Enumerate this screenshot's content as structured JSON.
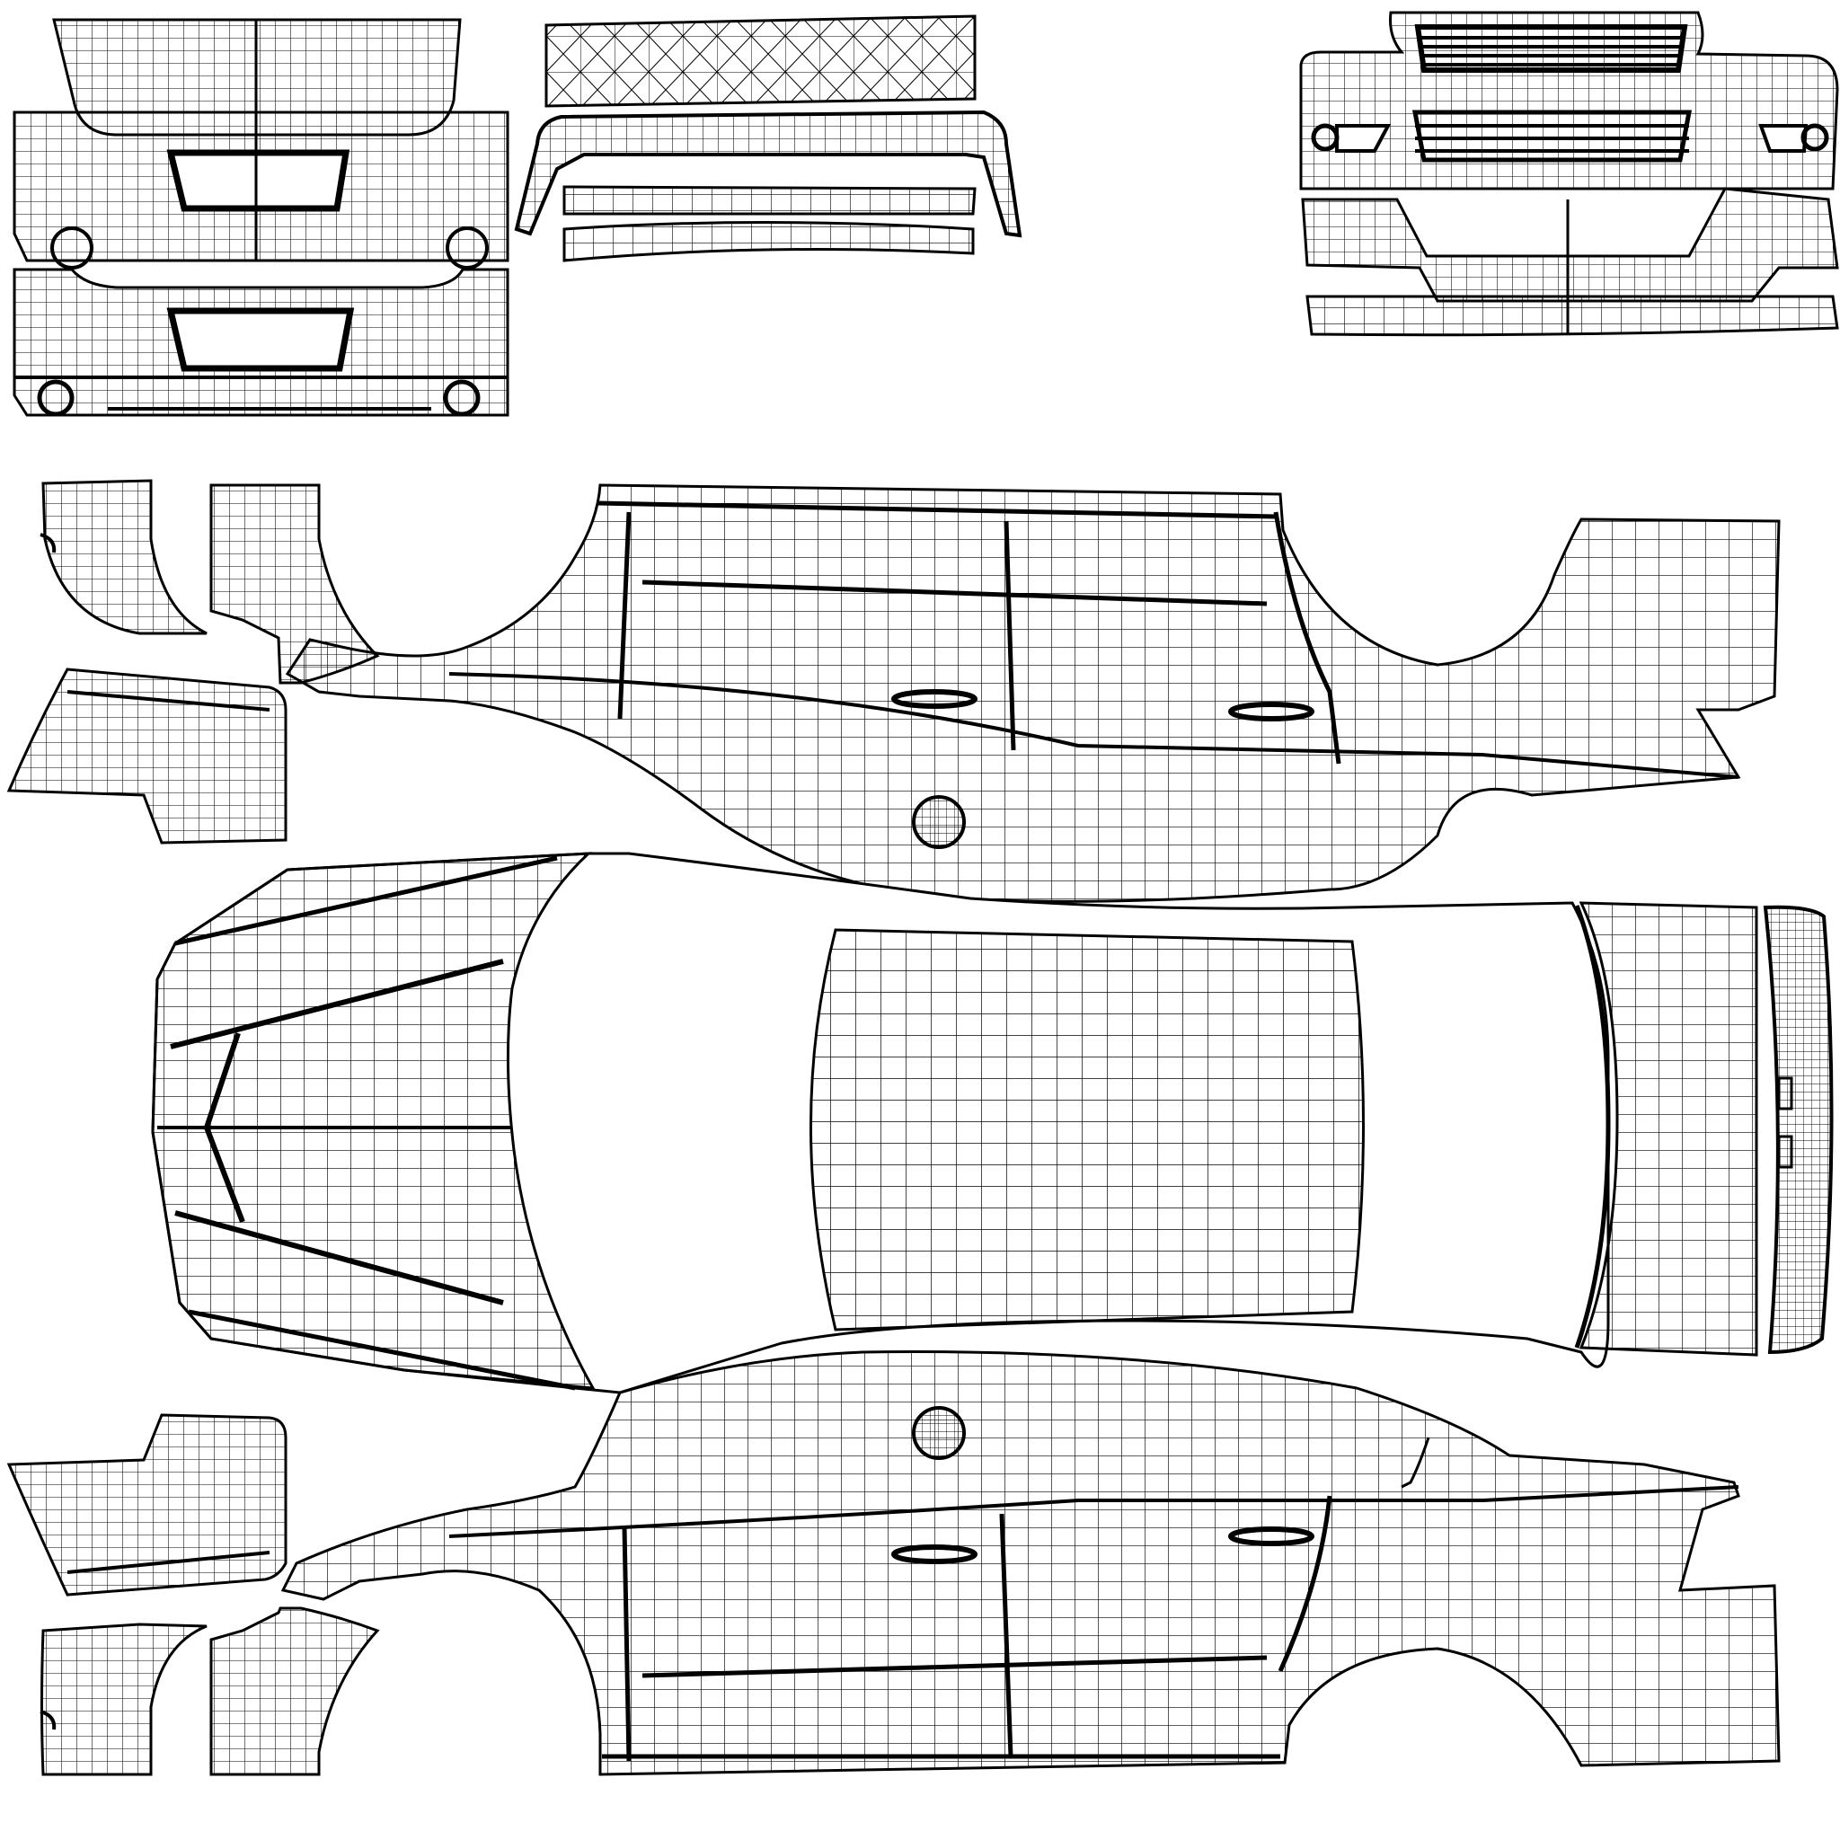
{
  "template": {
    "colors": {
      "background": "#ffffff",
      "line": "#000000"
    },
    "parts": [
      {
        "id": "rear-bumper-upper",
        "kind": "bumper"
      },
      {
        "id": "rear-bumper-lower",
        "kind": "bumper"
      },
      {
        "id": "rear-spoiler",
        "kind": "spoiler"
      },
      {
        "id": "front-bumper",
        "kind": "bumper"
      },
      {
        "id": "front-bumper-lower",
        "kind": "bumper"
      },
      {
        "id": "fender-top-left-a",
        "kind": "fender"
      },
      {
        "id": "fender-top-left-b",
        "kind": "fender"
      },
      {
        "id": "fender-top-left-c",
        "kind": "fender"
      },
      {
        "id": "side-body-top",
        "kind": "side-panel"
      },
      {
        "id": "hood-and-roof",
        "kind": "top-panel"
      },
      {
        "id": "roof-panel",
        "kind": "roof"
      },
      {
        "id": "trunk-strip",
        "kind": "trunk"
      },
      {
        "id": "side-body-bottom",
        "kind": "side-panel"
      },
      {
        "id": "fender-bottom-left-a",
        "kind": "fender"
      },
      {
        "id": "fender-bottom-left-b",
        "kind": "fender"
      },
      {
        "id": "fender-bottom-left-c",
        "kind": "fender"
      },
      {
        "id": "fuel-cap-top",
        "kind": "fuel-cap"
      },
      {
        "id": "fuel-cap-bottom",
        "kind": "fuel-cap"
      }
    ]
  }
}
